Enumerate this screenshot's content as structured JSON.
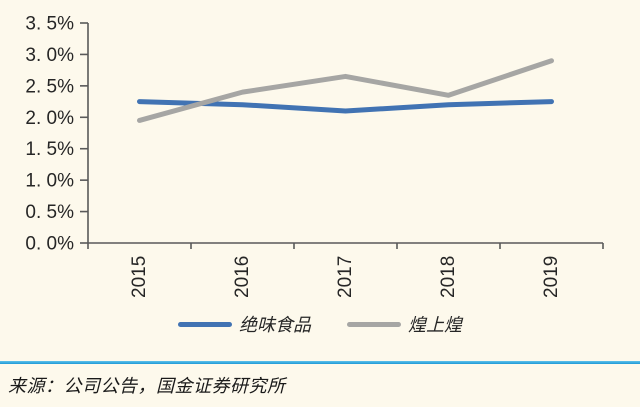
{
  "chart_data": {
    "type": "line",
    "title": "",
    "xlabel": "",
    "ylabel": "",
    "categories": [
      "2015",
      "2016",
      "2017",
      "2018",
      "2019"
    ],
    "series": [
      {
        "name": "绝味食品",
        "color": "#4173B3",
        "values": [
          2.25,
          2.2,
          2.1,
          2.2,
          2.25
        ]
      },
      {
        "name": "煌上煌",
        "color": "#A6A6A4",
        "values": [
          1.95,
          2.4,
          2.65,
          2.35,
          2.9
        ]
      }
    ],
    "ylim": [
      0,
      3.5
    ],
    "y_tick_step": 0.5,
    "y_tick_labels": [
      "0. 0%",
      "0. 5%",
      "1. 0%",
      "1. 5%",
      "2. 0%",
      "2. 5%",
      "3. 0%",
      "3. 5%"
    ],
    "grid": false,
    "legend_position": "bottom",
    "x_labels_rotated_degrees": -90
  },
  "footer": {
    "source_text": "来源：公司公告，国金证券研究所"
  },
  "colors": {
    "background": "#FDF9EC",
    "axis": "#595959",
    "tick_label_text": "#262626",
    "separator": "#1D9AD6"
  }
}
